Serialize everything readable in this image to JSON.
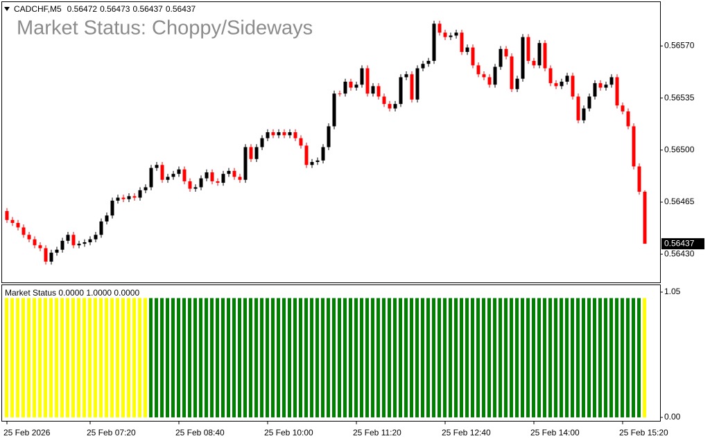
{
  "header": {
    "symbol": "CADCHF,M5",
    "title": "Market Status: Choppy/Sideways"
  },
  "chart_data": [
    {
      "type": "candlestick",
      "up_color": "#000000",
      "down_color": "#ff0000",
      "categories": [
        "25 Feb 2026",
        null,
        null,
        null,
        null,
        null,
        null,
        null,
        null,
        null,
        null,
        null,
        null,
        null,
        null,
        "25 Feb 07:20",
        null,
        null,
        null,
        null,
        null,
        null,
        null,
        null,
        null,
        null,
        null,
        null,
        null,
        null,
        null,
        "25 Feb 08:40",
        null,
        null,
        null,
        null,
        null,
        null,
        null,
        null,
        null,
        null,
        null,
        null,
        null,
        null,
        null,
        "25 Feb 10:00",
        null,
        null,
        null,
        null,
        null,
        null,
        null,
        null,
        null,
        null,
        null,
        null,
        null,
        null,
        null,
        "25 Feb 11:20",
        null,
        null,
        null,
        null,
        null,
        null,
        null,
        null,
        null,
        null,
        null,
        null,
        null,
        null,
        null,
        "25 Feb 12:40",
        null,
        null,
        null,
        null,
        null,
        null,
        null,
        null,
        null,
        null,
        null,
        null,
        null,
        null,
        null,
        "25 Feb 14:00",
        null,
        null,
        null,
        null,
        null,
        null,
        null,
        null,
        null,
        null,
        null,
        null,
        null,
        null,
        null,
        "25 Feb 15:20",
        null,
        null,
        null,
        null
      ],
      "open": [
        0.56459,
        0.56453,
        0.56451,
        0.56448,
        0.56443,
        0.5644,
        0.56436,
        0.56434,
        0.56425,
        0.56431,
        0.56433,
        0.56439,
        0.56443,
        0.56436,
        0.56437,
        0.56438,
        0.5644,
        0.56443,
        0.56452,
        0.56456,
        0.56466,
        0.56468,
        0.56467,
        0.56469,
        0.56468,
        0.56473,
        0.56475,
        0.56488,
        0.5649,
        0.5648,
        0.56482,
        0.56484,
        0.56487,
        0.56479,
        0.56474,
        0.56475,
        0.56481,
        0.56485,
        0.56479,
        0.56478,
        0.56484,
        0.56486,
        0.56482,
        0.5648,
        0.56502,
        0.56494,
        0.56502,
        0.56508,
        0.56512,
        0.5651,
        0.56512,
        0.5651,
        0.56512,
        0.56508,
        0.56503,
        0.5649,
        0.56492,
        0.56493,
        0.56502,
        0.56516,
        0.56538,
        0.56538,
        0.56546,
        0.56542,
        0.56544,
        0.56555,
        0.56538,
        0.56543,
        0.56536,
        0.56531,
        0.56528,
        0.56531,
        0.56549,
        0.56551,
        0.56534,
        0.56555,
        0.56558,
        0.5656,
        0.56585,
        0.56579,
        0.56576,
        0.56577,
        0.56579,
        0.56566,
        0.56569,
        0.56557,
        0.56551,
        0.56549,
        0.56544,
        0.56556,
        0.56568,
        0.56563,
        0.56541,
        0.56548,
        0.56576,
        0.5656,
        0.56557,
        0.56572,
        0.56555,
        0.56545,
        0.56543,
        0.56546,
        0.5655,
        0.56536,
        0.5652,
        0.56528,
        0.56536,
        0.56545,
        0.56542,
        0.56544,
        0.56549,
        0.5653,
        0.56526,
        0.56516,
        0.56489,
        0.56472
      ],
      "high": [
        0.56461,
        0.56455,
        0.56453,
        0.5645,
        0.56445,
        0.56442,
        0.56438,
        0.56436,
        0.56433,
        0.56435,
        0.56441,
        0.56445,
        0.56445,
        0.56439,
        0.5644,
        0.56442,
        0.56445,
        0.56454,
        0.56458,
        0.56468,
        0.5647,
        0.5647,
        0.56471,
        0.56471,
        0.56475,
        0.56477,
        0.5649,
        0.56492,
        0.56492,
        0.56484,
        0.56486,
        0.56489,
        0.56489,
        0.56481,
        0.56477,
        0.56483,
        0.56487,
        0.56487,
        0.56481,
        0.56486,
        0.56488,
        0.56488,
        0.56484,
        0.56504,
        0.56504,
        0.56504,
        0.5651,
        0.56514,
        0.56514,
        0.56514,
        0.56514,
        0.56514,
        0.56514,
        0.5651,
        0.56505,
        0.56494,
        0.56495,
        0.56504,
        0.56518,
        0.5654,
        0.5654,
        0.56548,
        0.56548,
        0.56546,
        0.56557,
        0.56557,
        0.56545,
        0.56545,
        0.56538,
        0.56533,
        0.56533,
        0.56551,
        0.56553,
        0.56553,
        0.56557,
        0.5656,
        0.56562,
        0.56587,
        0.56587,
        0.56581,
        0.56579,
        0.56581,
        0.56581,
        0.56571,
        0.56571,
        0.56559,
        0.56553,
        0.56551,
        0.56558,
        0.5657,
        0.5657,
        0.56565,
        0.5655,
        0.56578,
        0.56578,
        0.56562,
        0.56574,
        0.56574,
        0.56557,
        0.56547,
        0.56548,
        0.56552,
        0.56552,
        0.56538,
        0.5653,
        0.56538,
        0.56547,
        0.56547,
        0.56546,
        0.56551,
        0.56551,
        0.56532,
        0.56528,
        0.56518,
        0.56491,
        0.56473
      ],
      "low": [
        0.56451,
        0.56449,
        0.56446,
        0.56441,
        0.56438,
        0.56434,
        0.56432,
        0.56423,
        0.56423,
        0.56429,
        0.56431,
        0.56437,
        0.56434,
        0.56434,
        0.56435,
        0.56436,
        0.56438,
        0.56441,
        0.5645,
        0.56454,
        0.56464,
        0.56465,
        0.56465,
        0.56466,
        0.56466,
        0.56471,
        0.56473,
        0.56486,
        0.56478,
        0.56478,
        0.5648,
        0.56482,
        0.56477,
        0.56472,
        0.56472,
        0.56473,
        0.56479,
        0.56477,
        0.56476,
        0.56476,
        0.56482,
        0.5648,
        0.56478,
        0.56478,
        0.56492,
        0.56492,
        0.565,
        0.56506,
        0.56508,
        0.56508,
        0.56508,
        0.56508,
        0.56506,
        0.56501,
        0.56488,
        0.56488,
        0.5649,
        0.56491,
        0.565,
        0.56514,
        0.56536,
        0.56536,
        0.5654,
        0.5654,
        0.56542,
        0.56536,
        0.56536,
        0.56534,
        0.56529,
        0.56526,
        0.56526,
        0.56529,
        0.56547,
        0.56532,
        0.56532,
        0.56553,
        0.56556,
        0.56558,
        0.56577,
        0.56574,
        0.56574,
        0.56575,
        0.56564,
        0.56564,
        0.56555,
        0.56549,
        0.56547,
        0.56542,
        0.56542,
        0.56554,
        0.56561,
        0.56539,
        0.56539,
        0.56546,
        0.56558,
        0.56555,
        0.56555,
        0.56553,
        0.56543,
        0.56541,
        0.56541,
        0.56544,
        0.56534,
        0.56518,
        0.56518,
        0.56526,
        0.56534,
        0.5654,
        0.5654,
        0.56542,
        0.56528,
        0.56524,
        0.56514,
        0.56487,
        0.5647,
        0.56437
      ],
      "close": [
        0.56453,
        0.56451,
        0.56448,
        0.56443,
        0.5644,
        0.56436,
        0.56434,
        0.56425,
        0.56431,
        0.56433,
        0.56439,
        0.56443,
        0.56436,
        0.56437,
        0.56438,
        0.5644,
        0.56443,
        0.56452,
        0.56456,
        0.56466,
        0.56468,
        0.56467,
        0.56469,
        0.56468,
        0.56473,
        0.56475,
        0.56488,
        0.5649,
        0.5648,
        0.56482,
        0.56484,
        0.56487,
        0.56479,
        0.56474,
        0.56475,
        0.56481,
        0.56485,
        0.56479,
        0.56478,
        0.56484,
        0.56486,
        0.56482,
        0.5648,
        0.56502,
        0.56494,
        0.56502,
        0.56508,
        0.56512,
        0.5651,
        0.56512,
        0.5651,
        0.56512,
        0.56508,
        0.56503,
        0.5649,
        0.56492,
        0.56493,
        0.56502,
        0.56516,
        0.56538,
        0.56538,
        0.56546,
        0.56542,
        0.56544,
        0.56555,
        0.56538,
        0.56543,
        0.56536,
        0.56531,
        0.56528,
        0.56531,
        0.56549,
        0.56551,
        0.56534,
        0.56555,
        0.56558,
        0.5656,
        0.56585,
        0.56579,
        0.56576,
        0.56577,
        0.56579,
        0.56566,
        0.56569,
        0.56557,
        0.56551,
        0.56549,
        0.56544,
        0.56556,
        0.56568,
        0.56563,
        0.56541,
        0.56548,
        0.56576,
        0.5656,
        0.56557,
        0.56572,
        0.56555,
        0.56545,
        0.56543,
        0.56546,
        0.5655,
        0.56536,
        0.5652,
        0.56528,
        0.56536,
        0.56545,
        0.56542,
        0.56544,
        0.56549,
        0.5653,
        0.56526,
        0.56516,
        0.56489,
        0.56472,
        0.56437
      ],
      "ylim": [
        0.56411,
        0.566
      ],
      "yticks": [
        {
          "value": 0.5657,
          "label": "0.56570"
        },
        0.56535,
        {
          "value": 0.565,
          "label": "0.56500"
        },
        0.56465,
        {
          "value": 0.5643,
          "label": "0.56430"
        }
      ]
    },
    {
      "type": "bar",
      "label": "Market Status 0.0000 1.0000 0.0000",
      "ylim": [
        0,
        1.05
      ],
      "yticks": [
        1.05,
        {
          "value": 0,
          "label": "0.00"
        }
      ],
      "series": [
        {
          "color": "#ffff00",
          "values": [
            1,
            1,
            1,
            1,
            1,
            1,
            1,
            1,
            1,
            1,
            1,
            1,
            1,
            1,
            1,
            1,
            1,
            1,
            1,
            1,
            1,
            1,
            1,
            1,
            1,
            1,
            null,
            null,
            null,
            null,
            null,
            null,
            null,
            null,
            null,
            null,
            null,
            null,
            null,
            null,
            null,
            null,
            null,
            null,
            null,
            null,
            null,
            null,
            null,
            null,
            null,
            null,
            null,
            null,
            null,
            null,
            null,
            null,
            null,
            null,
            null,
            null,
            null,
            null,
            null,
            null,
            null,
            null,
            null,
            null,
            null,
            null,
            null,
            null,
            null,
            null,
            null,
            null,
            null,
            null,
            null,
            null,
            null,
            null,
            null,
            null,
            null,
            null,
            null,
            null,
            null,
            null,
            null,
            null,
            null,
            null,
            null,
            null,
            null,
            null,
            null,
            null,
            null,
            null,
            null,
            null,
            null,
            null,
            null,
            null,
            null,
            null,
            null,
            null,
            null,
            1
          ]
        },
        {
          "color": "#008000",
          "values": [
            null,
            null,
            null,
            null,
            null,
            null,
            null,
            null,
            null,
            null,
            null,
            null,
            null,
            null,
            null,
            null,
            null,
            null,
            null,
            null,
            null,
            null,
            null,
            null,
            null,
            null,
            1,
            1,
            1,
            1,
            1,
            1,
            1,
            1,
            1,
            1,
            1,
            1,
            1,
            1,
            1,
            1,
            1,
            1,
            1,
            1,
            1,
            1,
            1,
            1,
            1,
            1,
            1,
            1,
            1,
            1,
            1,
            1,
            1,
            1,
            1,
            1,
            1,
            1,
            1,
            1,
            1,
            1,
            1,
            1,
            1,
            1,
            1,
            1,
            1,
            1,
            1,
            1,
            1,
            1,
            1,
            1,
            1,
            1,
            1,
            1,
            1,
            1,
            1,
            1,
            1,
            1,
            1,
            1,
            1,
            1,
            1,
            1,
            1,
            1,
            1,
            1,
            1,
            1,
            1,
            1,
            1,
            1,
            1,
            1,
            1,
            1,
            1,
            1,
            1,
            null
          ]
        }
      ]
    }
  ]
}
